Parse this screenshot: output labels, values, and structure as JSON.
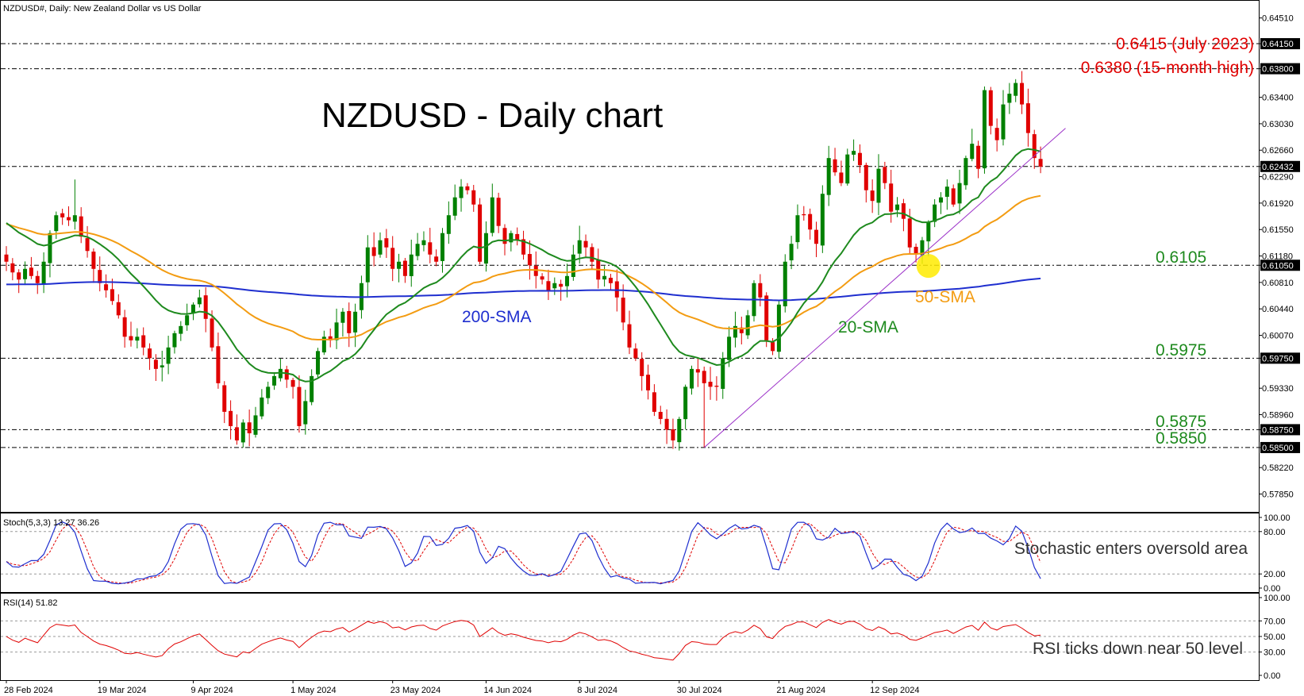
{
  "window_title": "NZDUSD#, Daily:  New Zealand Dollar vs US Dollar",
  "chart_title": "NZDUSD - Daily chart",
  "colors": {
    "bull": "#008000",
    "bear": "#e00000",
    "sma20": "#1e8a1e",
    "sma50": "#f39c12",
    "sma200": "#1f2fcf",
    "trendline": "#9b30c8",
    "annotation_red": "#e00000",
    "level_green": "#1e8a1e",
    "stoch_main": "#1f2fcf",
    "stoch_signal": "#e00000",
    "rsi": "#e00000",
    "highlight": "#ffeb00"
  },
  "chart_data": [
    {
      "type": "candlestick",
      "title": "NZDUSD - Daily chart",
      "ylim": [
        0.576,
        0.6475
      ],
      "y_ticks": [
        "0.64510",
        "0.64150",
        "0.63800",
        "0.63400",
        "0.63030",
        "0.62660",
        "0.62432",
        "0.62290",
        "0.61920",
        "0.61550",
        "0.61180",
        "0.61050",
        "0.60810",
        "0.60440",
        "0.60070",
        "0.59750",
        "0.59330",
        "0.58960",
        "0.58750",
        "0.58500",
        "0.58220",
        "0.57850"
      ],
      "highlight_ticks": [
        "0.64150",
        "0.63800",
        "0.62432",
        "0.61050",
        "0.59750",
        "0.58750",
        "0.58500"
      ],
      "x_labels": [
        "28 Feb 2024",
        "19 Mar 2024",
        "9 Apr 2024",
        "1 May 2024",
        "23 May 2024",
        "14 Jun 2024",
        "8 Jul 2024",
        "30 Jul 2024",
        "21 Aug 2024",
        "12 Sep 2024"
      ],
      "x_label_index": [
        0,
        15,
        30,
        46,
        62,
        77,
        92,
        108,
        124,
        139
      ],
      "closes": [
        0.611,
        0.6095,
        0.6085,
        0.61,
        0.609,
        0.608,
        0.611,
        0.615,
        0.6175,
        0.6172,
        0.6168,
        0.6175,
        0.6145,
        0.6125,
        0.61,
        0.608,
        0.607,
        0.6055,
        0.6035,
        0.6005,
        0.6,
        0.6005,
        0.599,
        0.5975,
        0.596,
        0.5965,
        0.599,
        0.601,
        0.602,
        0.6035,
        0.605,
        0.606,
        0.603,
        0.599,
        0.594,
        0.59,
        0.588,
        0.586,
        0.5885,
        0.587,
        0.5895,
        0.592,
        0.5935,
        0.595,
        0.596,
        0.5945,
        0.5935,
        0.588,
        0.5915,
        0.595,
        0.5985,
        0.6005,
        0.6,
        0.6025,
        0.604,
        0.601,
        0.604,
        0.608,
        0.613,
        0.6118,
        0.614,
        0.613,
        0.61,
        0.611,
        0.609,
        0.612,
        0.6135,
        0.614,
        0.612,
        0.611,
        0.615,
        0.6175,
        0.62,
        0.6215,
        0.621,
        0.619,
        0.611,
        0.615,
        0.62,
        0.616,
        0.6135,
        0.615,
        0.614,
        0.612,
        0.6105,
        0.609,
        0.6085,
        0.607,
        0.608,
        0.6075,
        0.609,
        0.612,
        0.614,
        0.613,
        0.611,
        0.6085,
        0.609,
        0.608,
        0.606,
        0.6025,
        0.599,
        0.5975,
        0.595,
        0.593,
        0.59,
        0.589,
        0.5875,
        0.586,
        0.589,
        0.5935,
        0.596,
        0.5955,
        0.594,
        0.5935,
        0.5935,
        0.5975,
        0.6005,
        0.602,
        0.601,
        0.6035,
        0.608,
        0.606,
        0.6,
        0.5985,
        0.605,
        0.611,
        0.6135,
        0.6175,
        0.6175,
        0.6155,
        0.6135,
        0.6205,
        0.6255,
        0.6235,
        0.622,
        0.626,
        0.6265,
        0.6245,
        0.621,
        0.6195,
        0.624,
        0.622,
        0.618,
        0.619,
        0.617,
        0.613,
        0.612,
        0.614,
        0.6165,
        0.619,
        0.62,
        0.6215,
        0.619,
        0.622,
        0.6255,
        0.6275,
        0.624,
        0.635,
        0.63,
        0.628,
        0.633,
        0.6345,
        0.636,
        0.633,
        0.629,
        0.6255,
        0.6243
      ],
      "levels": [
        "0.6105",
        "0.5975",
        "0.5875",
        "0.5850"
      ],
      "annotations": [
        "0.6415 (July 2023)",
        "0.6380 (15-month high)"
      ],
      "series_labels": [
        "200-SMA",
        "50-SMA",
        "20-SMA"
      ]
    },
    {
      "type": "line",
      "indicator": "Stoch(5,3,3) 13.27 36.26",
      "ylim": [
        0,
        100
      ],
      "y_ticks": [
        "100.00",
        "80.00",
        "20.00",
        "0.00"
      ],
      "annotation": "Stochastic enters oversold area",
      "main_last": 13.27,
      "signal_last": 36.26
    },
    {
      "type": "line",
      "indicator": "RSI(14) 51.82",
      "ylim": [
        0,
        100
      ],
      "y_ticks": [
        "100.00",
        "70.00",
        "50.00",
        "30.00",
        "0.00"
      ],
      "annotation": "RSI ticks down near 50 level",
      "last": 51.82
    }
  ]
}
